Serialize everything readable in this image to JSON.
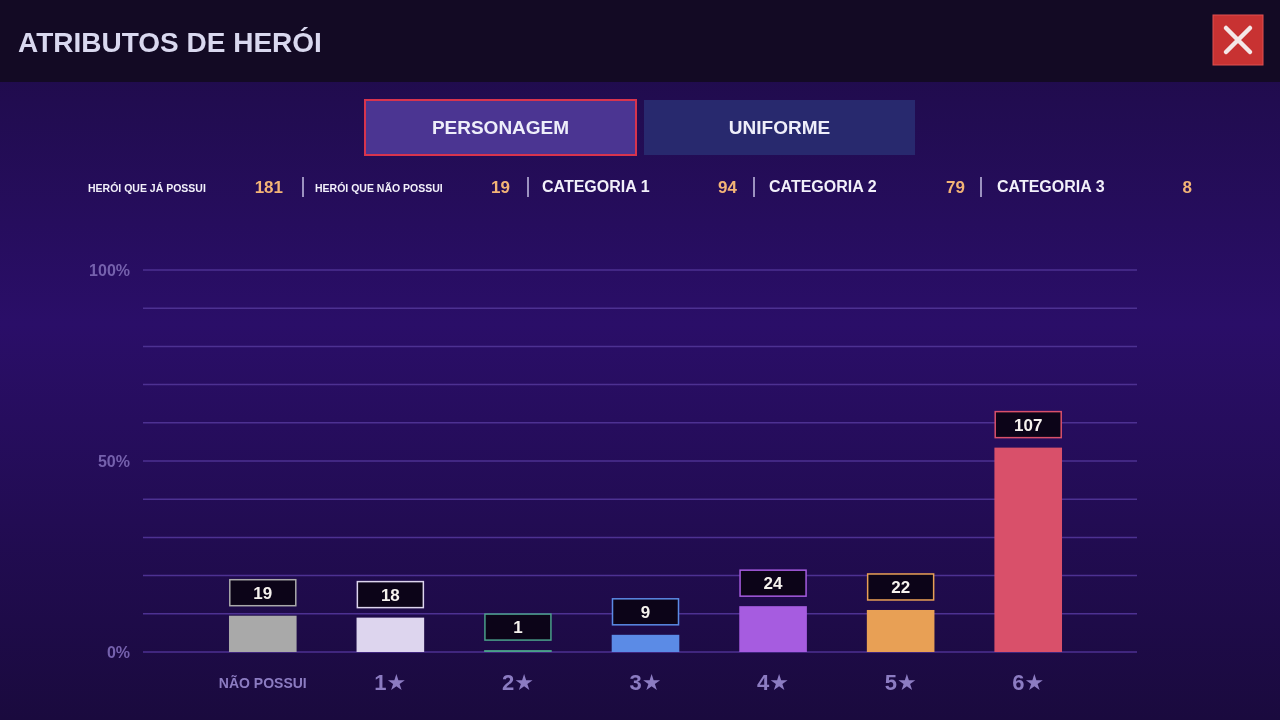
{
  "chart_data": {
    "type": "bar",
    "title": "ATRIBUTOS DE HERÓI",
    "categories": [
      "NÃO POSSUI",
      "1★",
      "2★",
      "3★",
      "4★",
      "5★",
      "6★"
    ],
    "series": [
      {
        "values": [
          19,
          18,
          1,
          9,
          24,
          22,
          107
        ],
        "axis": "y2",
        "colors": [
          "#a9a9a9",
          "#ddd5ee",
          "#4aa08a",
          "#5b8be6",
          "#a65ce0",
          "#e8a055",
          "#d9506a"
        ]
      }
    ],
    "ylim": [
      0,
      100
    ],
    "yticks": [
      {
        "value": 0,
        "label": "0%"
      },
      {
        "value": 10,
        "label": null
      },
      {
        "value": 20,
        "label": null
      },
      {
        "value": 30,
        "label": null
      },
      {
        "value": 40,
        "label": null
      },
      {
        "value": 50,
        "label": "50%"
      },
      {
        "value": 60,
        "label": null
      },
      {
        "value": 70,
        "label": null
      },
      {
        "value": 80,
        "label": null
      },
      {
        "value": 90,
        "label": null
      },
      {
        "value": 100,
        "label": "100%"
      }
    ],
    "y2lim": [
      0,
      200
    ],
    "grid": "y",
    "data_labels": true,
    "annotations": [
      "PERSONAGEM",
      "UNIFORME",
      "HERÓI QUE JÁ POSSUI",
      "181",
      "HERÓI QUE NÃO POSSUI",
      "19",
      "CATEGORIA 1",
      "94",
      "CATEGORIA 2",
      "79",
      "CATEGORIA 3",
      "8"
    ]
  }
}
